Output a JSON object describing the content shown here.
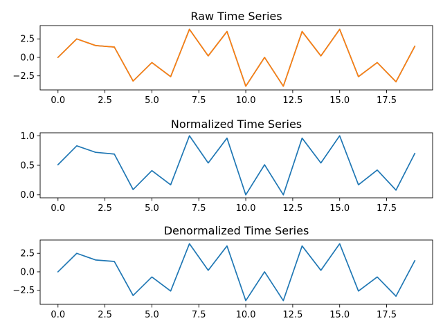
{
  "chart_data": [
    {
      "type": "line",
      "title": "Raw Time Series",
      "xlabel": "",
      "ylabel": "",
      "x": [
        0,
        1,
        2,
        3,
        4,
        5,
        6,
        7,
        8,
        9,
        10,
        11,
        12,
        13,
        14,
        15,
        16,
        17,
        18,
        19
      ],
      "series": [
        {
          "color": "#1f77b4",
          "values": [
            0.0,
            2.5,
            1.6,
            1.4,
            -3.2,
            -0.7,
            -2.6,
            3.8,
            0.2,
            3.5,
            -3.9,
            0.0,
            -3.9,
            3.5,
            0.2,
            3.8,
            -2.6,
            -0.7,
            -3.3,
            1.5
          ]
        },
        {
          "color": "#ff7f0e",
          "values": [
            0.0,
            2.5,
            1.6,
            1.4,
            -3.2,
            -0.7,
            -2.6,
            3.8,
            0.2,
            3.5,
            -3.9,
            0.0,
            -3.9,
            3.5,
            0.2,
            3.8,
            -2.6,
            -0.7,
            -3.3,
            1.5
          ]
        }
      ],
      "xlim": [
        -0.95,
        19.95
      ],
      "ylim": [
        -4.4,
        4.3
      ],
      "xticks": [
        0,
        2.5,
        5,
        7.5,
        10,
        12.5,
        15,
        17.5
      ],
      "xtick_labels": [
        "0.0",
        "2.5",
        "5.0",
        "7.5",
        "10.0",
        "12.5",
        "15.0",
        "17.5"
      ],
      "yticks": [
        2.5,
        0,
        -2.5
      ],
      "ytick_labels": [
        "2.5",
        "0.0",
        "−2.5"
      ]
    },
    {
      "type": "line",
      "title": "Normalized Time Series",
      "xlabel": "",
      "ylabel": "",
      "x": [
        0,
        1,
        2,
        3,
        4,
        5,
        6,
        7,
        8,
        9,
        10,
        11,
        12,
        13,
        14,
        15,
        16,
        17,
        18,
        19
      ],
      "series": [
        {
          "color": "#1f77b4",
          "values": [
            0.51,
            0.83,
            0.72,
            0.69,
            0.09,
            0.41,
            0.17,
            1.0,
            0.54,
            0.96,
            0.0,
            0.51,
            0.0,
            0.96,
            0.54,
            1.0,
            0.17,
            0.42,
            0.08,
            0.7
          ]
        }
      ],
      "xlim": [
        -0.95,
        19.95
      ],
      "ylim": [
        -0.05,
        1.05
      ],
      "xticks": [
        0,
        2.5,
        5,
        7.5,
        10,
        12.5,
        15,
        17.5
      ],
      "xtick_labels": [
        "0.0",
        "2.5",
        "5.0",
        "7.5",
        "10.0",
        "12.5",
        "15.0",
        "17.5"
      ],
      "yticks": [
        1.0,
        0.5,
        0.0
      ],
      "ytick_labels": [
        "1.0",
        "0.5",
        "0.0"
      ]
    },
    {
      "type": "line",
      "title": "Denormalized Time Series",
      "xlabel": "",
      "ylabel": "",
      "x": [
        0,
        1,
        2,
        3,
        4,
        5,
        6,
        7,
        8,
        9,
        10,
        11,
        12,
        13,
        14,
        15,
        16,
        17,
        18,
        19
      ],
      "series": [
        {
          "color": "#1f77b4",
          "values": [
            0.0,
            2.5,
            1.6,
            1.4,
            -3.2,
            -0.7,
            -2.6,
            3.8,
            0.2,
            3.5,
            -3.9,
            0.0,
            -3.9,
            3.5,
            0.2,
            3.8,
            -2.6,
            -0.7,
            -3.3,
            1.5
          ]
        }
      ],
      "xlim": [
        -0.95,
        19.95
      ],
      "ylim": [
        -4.4,
        4.3
      ],
      "xticks": [
        0,
        2.5,
        5,
        7.5,
        10,
        12.5,
        15,
        17.5
      ],
      "xtick_labels": [
        "0.0",
        "2.5",
        "5.0",
        "7.5",
        "10.0",
        "12.5",
        "15.0",
        "17.5"
      ],
      "yticks": [
        2.5,
        0,
        -2.5
      ],
      "ytick_labels": [
        "2.5",
        "0.0",
        "−2.5"
      ]
    }
  ]
}
